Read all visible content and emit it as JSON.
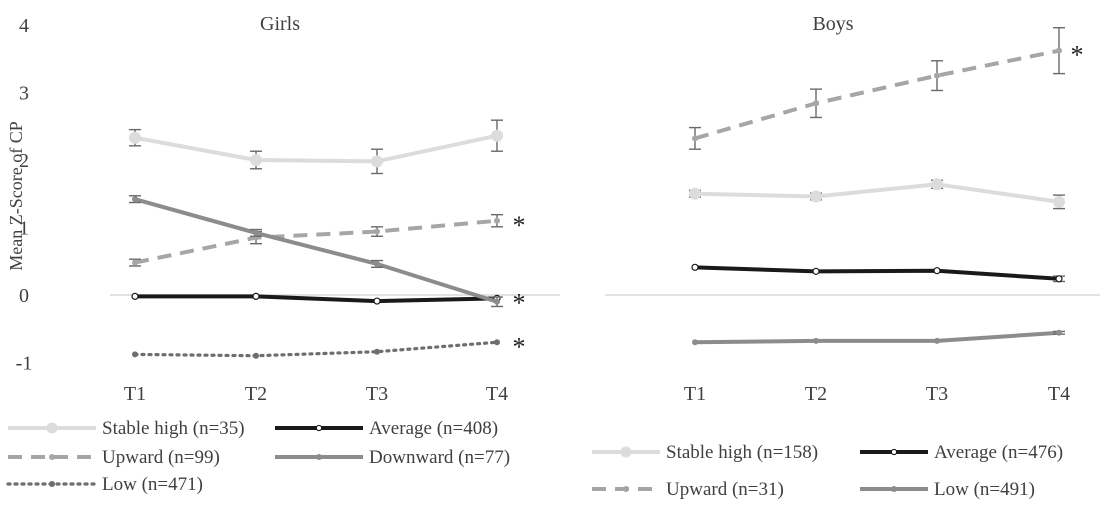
{
  "y_axis_label": "Mean Z-Score of CP",
  "chart_data": [
    {
      "type": "line",
      "title": "Girls",
      "categories": [
        "T1",
        "T2",
        "T3",
        "T4"
      ],
      "ylim": [
        -1,
        4
      ],
      "yticks": [
        "4",
        "3",
        "2",
        "1",
        "0",
        "-1"
      ],
      "series": [
        {
          "name": "Stable high (n=35)",
          "values": [
            2.33,
            2.0,
            1.98,
            2.36
          ],
          "err": [
            0.12,
            0.13,
            0.18,
            0.23
          ],
          "color": "#dcdcdc",
          "style": "solid",
          "marker": "circle-large",
          "starred": false
        },
        {
          "name": "Average (n=408)",
          "values": [
            -0.02,
            -0.02,
            -0.09,
            -0.05
          ],
          "err": [
            0,
            0,
            0,
            0
          ],
          "color": "#1a1a1a",
          "style": "solid",
          "marker": "circle-small-hollow",
          "starred": true
        },
        {
          "name": "Upward (n=99)",
          "values": [
            0.48,
            0.85,
            0.94,
            1.1
          ],
          "err": [
            0.05,
            0.09,
            0.07,
            0.09
          ],
          "color": "#a6a6a6",
          "style": "dashed",
          "marker": "circle-small",
          "starred": true
        },
        {
          "name": "Downward (n=77)",
          "values": [
            1.42,
            0.92,
            0.46,
            -0.1
          ],
          "err": [
            0.05,
            0.05,
            0.05,
            0.07
          ],
          "color": "#8c8c8c",
          "style": "solid",
          "marker": "circle-small",
          "starred": false
        },
        {
          "name": "Low (n=471)",
          "values": [
            -0.88,
            -0.9,
            -0.84,
            -0.7
          ],
          "err": [
            0,
            0,
            0,
            0
          ],
          "color": "#6e6e6e",
          "style": "dotted",
          "marker": "circle-small",
          "starred": true
        }
      ],
      "annotations": [
        "*",
        "*",
        "*"
      ]
    },
    {
      "type": "line",
      "title": "Boys",
      "categories": [
        "T1",
        "T2",
        "T3",
        "T4"
      ],
      "ylim": [
        -1,
        4
      ],
      "series": [
        {
          "name": "Upward (n=31)",
          "values": [
            2.32,
            2.84,
            3.25,
            3.62
          ],
          "err": [
            0.16,
            0.21,
            0.22,
            0.34
          ],
          "color": "#a6a6a6",
          "style": "dashed",
          "marker": "circle-small",
          "starred": true
        },
        {
          "name": "Stable high (n=158)",
          "values": [
            1.5,
            1.46,
            1.64,
            1.38
          ],
          "err": [
            0.05,
            0.05,
            0.06,
            0.1
          ],
          "color": "#dcdcdc",
          "style": "solid",
          "marker": "circle-large",
          "starred": false
        },
        {
          "name": "Average (n=476)",
          "values": [
            0.41,
            0.35,
            0.36,
            0.24
          ],
          "err": [
            0,
            0,
            0,
            0.04
          ],
          "color": "#1a1a1a",
          "style": "solid",
          "marker": "circle-small-hollow",
          "starred": false
        },
        {
          "name": "Low (n=491)",
          "values": [
            -0.7,
            -0.68,
            -0.68,
            -0.56
          ],
          "err": [
            0,
            0,
            0,
            0.02
          ],
          "color": "#8c8c8c",
          "style": "solid",
          "marker": "circle-small",
          "starred": false
        }
      ],
      "annotations": [
        "*"
      ]
    }
  ]
}
